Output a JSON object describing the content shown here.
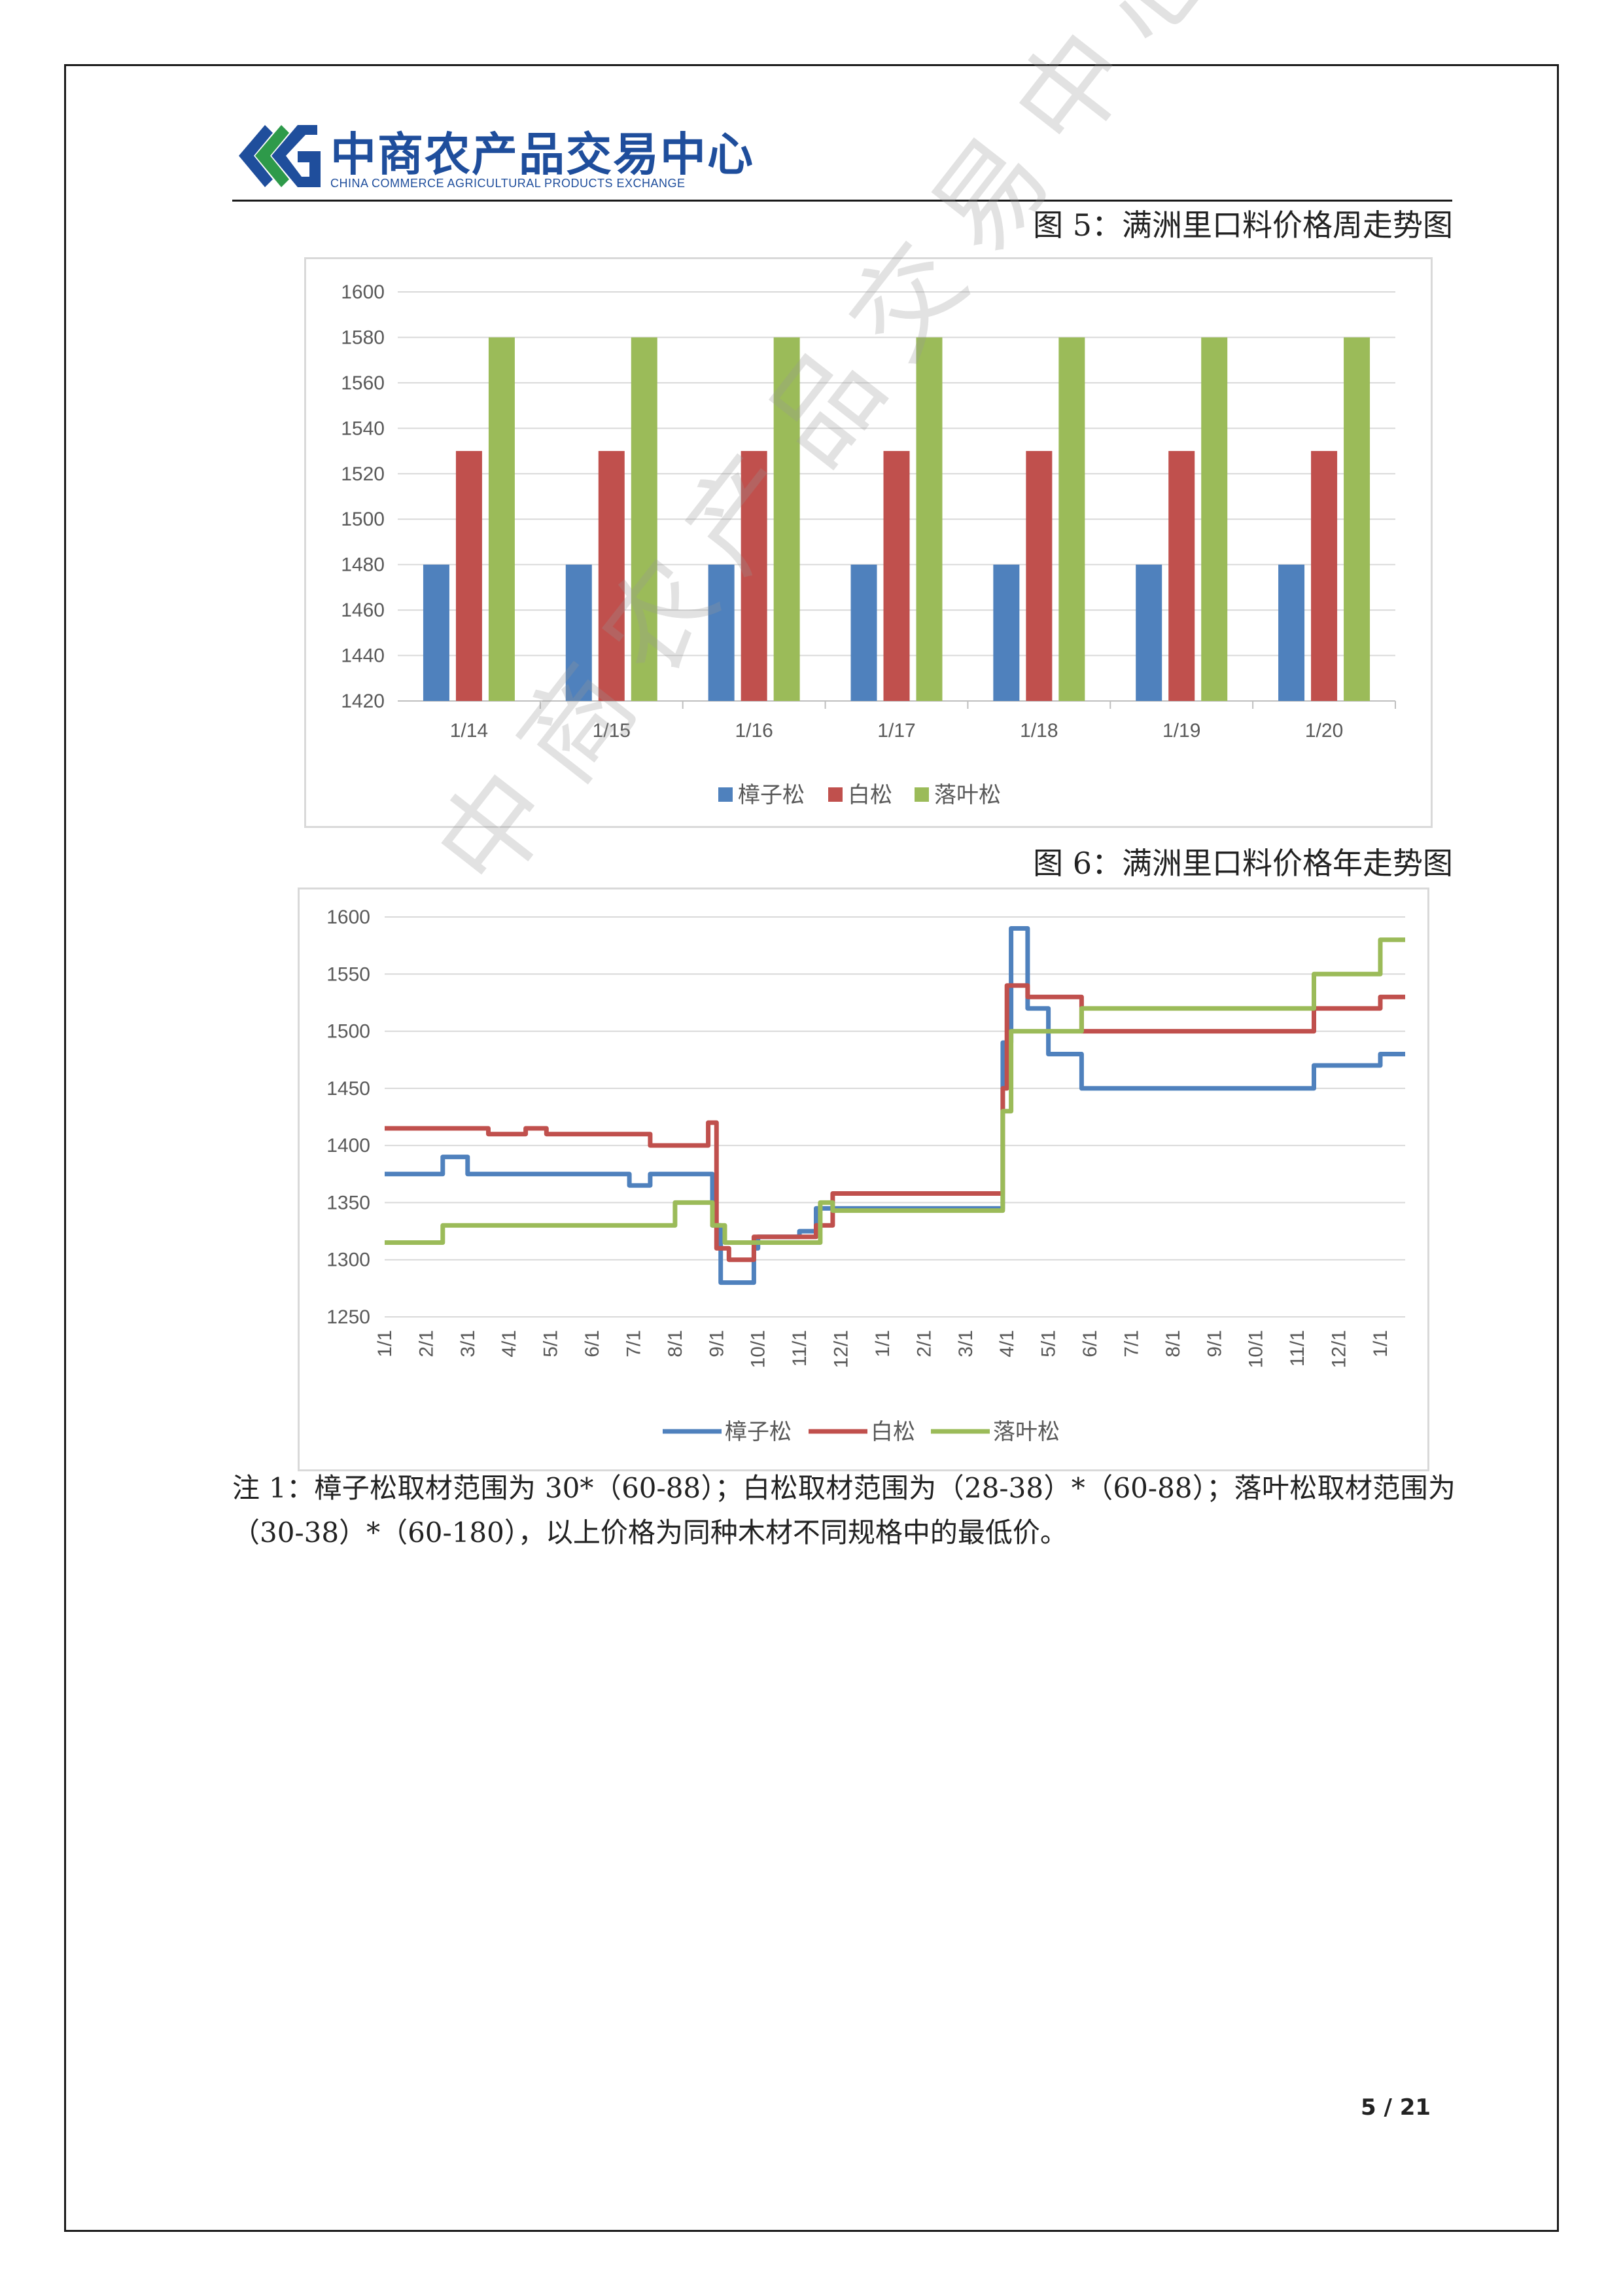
{
  "header": {
    "logo_cn": "中商农产品交易中心",
    "logo_en": "CHINA COMMERCE AGRICULTURAL PRODUCTS EXCHANGE"
  },
  "figure5": {
    "title": "图 5：满洲里口料价格周走势图"
  },
  "figure6": {
    "title": "图 6：满洲里口料价格年走势图"
  },
  "note": "注 1：樟子松取材范围为 30*（60-88）；白松取材范围为（28-38）*（60-88）；落叶松取材范围为（30-38）*（60-180），以上价格为同种木材不同规格中的最低价。",
  "page_number": "5 / 21",
  "watermark": "中商农产品交易中心",
  "colors": {
    "series1": "#4f81bd",
    "series2": "#c0504d",
    "series3": "#9bbb59",
    "logo": "#1f4e9c"
  },
  "chart_data": [
    {
      "type": "bar",
      "categories": [
        "1/14",
        "1/15",
        "1/16",
        "1/17",
        "1/18",
        "1/19",
        "1/20"
      ],
      "series": [
        {
          "name": "樟子松",
          "values": [
            1480,
            1480,
            1480,
            1480,
            1480,
            1480,
            1480
          ]
        },
        {
          "name": "白松",
          "values": [
            1530,
            1530,
            1530,
            1530,
            1530,
            1530,
            1530
          ]
        },
        {
          "name": "落叶松",
          "values": [
            1580,
            1580,
            1580,
            1580,
            1580,
            1580,
            1580
          ]
        }
      ],
      "ylim": [
        1420,
        1600
      ],
      "yticks": [
        1420,
        1440,
        1460,
        1480,
        1500,
        1520,
        1540,
        1560,
        1580,
        1600
      ],
      "grid": true,
      "legend": "bottom"
    },
    {
      "type": "line",
      "x_ticks": [
        "1/1",
        "2/1",
        "3/1",
        "4/1",
        "5/1",
        "6/1",
        "7/1",
        "8/1",
        "9/1",
        "10/1",
        "11/1",
        "12/1",
        "1/1",
        "2/1",
        "3/1",
        "4/1",
        "5/1",
        "6/1",
        "7/1",
        "8/1",
        "9/1",
        "10/1",
        "11/1",
        "12/1",
        "1/1"
      ],
      "x_range_months": [
        0,
        24.6
      ],
      "ylim": [
        1250,
        1600
      ],
      "yticks": [
        1250,
        1300,
        1350,
        1400,
        1450,
        1500,
        1550,
        1600
      ],
      "grid": true,
      "legend": "bottom",
      "series": [
        {
          "name": "樟子松",
          "points": [
            [
              0,
              1375
            ],
            [
              1.4,
              1375
            ],
            [
              1.4,
              1390
            ],
            [
              2,
              1390
            ],
            [
              2,
              1375
            ],
            [
              5.9,
              1375
            ],
            [
              5.9,
              1365
            ],
            [
              6.4,
              1365
            ],
            [
              6.4,
              1375
            ],
            [
              7.9,
              1375
            ],
            [
              7.9,
              1330
            ],
            [
              8.1,
              1330
            ],
            [
              8.1,
              1280
            ],
            [
              8.9,
              1280
            ],
            [
              8.9,
              1310
            ],
            [
              9,
              1310
            ],
            [
              9,
              1320
            ],
            [
              10,
              1320
            ],
            [
              10,
              1325
            ],
            [
              10.4,
              1325
            ],
            [
              10.4,
              1345
            ],
            [
              14.9,
              1345
            ],
            [
              14.9,
              1490
            ],
            [
              15.1,
              1490
            ],
            [
              15.1,
              1590
            ],
            [
              15.5,
              1590
            ],
            [
              15.5,
              1520
            ],
            [
              16,
              1520
            ],
            [
              16,
              1480
            ],
            [
              16.8,
              1480
            ],
            [
              16.8,
              1450
            ],
            [
              22.4,
              1450
            ],
            [
              22.4,
              1470
            ],
            [
              24,
              1470
            ],
            [
              24,
              1480
            ],
            [
              24.6,
              1480
            ]
          ]
        },
        {
          "name": "白松",
          "points": [
            [
              0,
              1415
            ],
            [
              2.5,
              1415
            ],
            [
              2.5,
              1410
            ],
            [
              3.4,
              1410
            ],
            [
              3.4,
              1415
            ],
            [
              3.9,
              1415
            ],
            [
              3.9,
              1410
            ],
            [
              6.4,
              1410
            ],
            [
              6.4,
              1400
            ],
            [
              7.8,
              1400
            ],
            [
              7.8,
              1420
            ],
            [
              8,
              1420
            ],
            [
              8,
              1310
            ],
            [
              8.3,
              1310
            ],
            [
              8.3,
              1300
            ],
            [
              8.9,
              1300
            ],
            [
              8.9,
              1320
            ],
            [
              10.4,
              1320
            ],
            [
              10.4,
              1330
            ],
            [
              10.8,
              1330
            ],
            [
              10.8,
              1358
            ],
            [
              14.9,
              1358
            ],
            [
              14.9,
              1450
            ],
            [
              15,
              1450
            ],
            [
              15,
              1540
            ],
            [
              15.5,
              1540
            ],
            [
              15.5,
              1530
            ],
            [
              16.8,
              1530
            ],
            [
              16.8,
              1500
            ],
            [
              22.4,
              1500
            ],
            [
              22.4,
              1520
            ],
            [
              24,
              1520
            ],
            [
              24,
              1530
            ],
            [
              24.6,
              1530
            ]
          ]
        },
        {
          "name": "落叶松",
          "points": [
            [
              0,
              1315
            ],
            [
              1.4,
              1315
            ],
            [
              1.4,
              1330
            ],
            [
              7,
              1330
            ],
            [
              7,
              1350
            ],
            [
              7.9,
              1350
            ],
            [
              7.9,
              1330
            ],
            [
              8.2,
              1330
            ],
            [
              8.2,
              1315
            ],
            [
              10.5,
              1315
            ],
            [
              10.5,
              1350
            ],
            [
              10.8,
              1350
            ],
            [
              10.8,
              1343
            ],
            [
              14.9,
              1343
            ],
            [
              14.9,
              1430
            ],
            [
              15.1,
              1430
            ],
            [
              15.1,
              1500
            ],
            [
              16.8,
              1500
            ],
            [
              16.8,
              1520
            ],
            [
              22.4,
              1520
            ],
            [
              22.4,
              1550
            ],
            [
              24,
              1550
            ],
            [
              24,
              1580
            ],
            [
              24.6,
              1580
            ]
          ]
        }
      ]
    }
  ]
}
